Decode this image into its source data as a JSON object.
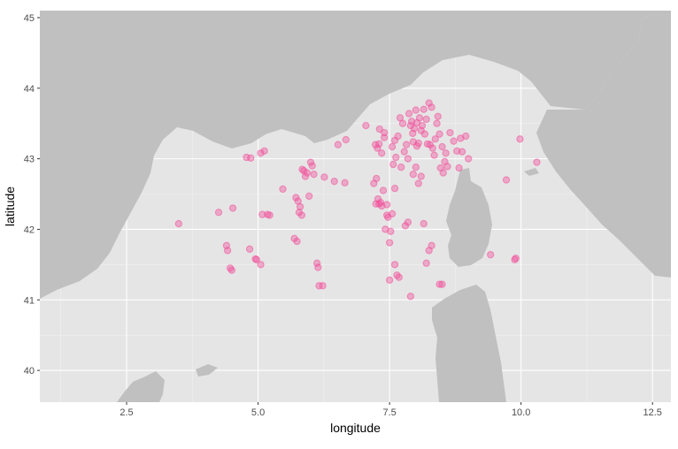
{
  "chart_data": {
    "type": "scatter",
    "title": "",
    "xlabel": "longitude",
    "ylabel": "latitude",
    "xlim": [
      0.85,
      12.85
    ],
    "ylim": [
      39.55,
      45.1
    ],
    "x_ticks": [
      2.5,
      5.0,
      7.5,
      10.0,
      12.5
    ],
    "x_tick_labels": [
      "2.5",
      "5.0",
      "7.5",
      "10.0",
      "12.5"
    ],
    "y_ticks": [
      40,
      41,
      42,
      43,
      44,
      45
    ],
    "y_tick_labels": [
      "40",
      "41",
      "42",
      "43",
      "44",
      "45"
    ],
    "grid": true,
    "legend": "none",
    "colors": {
      "panel": "#e5e5e5",
      "grid_major": "#ffffff",
      "grid_minor": "#f2f2f2",
      "land": "#c0c0c0",
      "point": "#f0509a"
    },
    "basemap": "land masses of the Ligurian Sea region (southern France, north-west Italy, Corsica, Sardinia, Balearic Islands) shown as grey polygons",
    "series": [
      {
        "x": [
          3.49,
          4.25,
          4.4,
          4.42,
          4.47,
          4.5,
          4.52,
          4.78,
          4.84,
          4.86,
          4.95,
          4.97,
          5.05,
          5.05,
          5.08,
          5.12,
          5.18,
          5.22,
          5.47,
          5.69,
          5.72,
          5.74,
          5.76,
          5.78,
          5.8,
          5.83,
          5.84,
          5.87,
          5.9,
          5.93,
          5.97,
          6.0,
          6.03,
          6.06,
          6.12,
          6.14,
          6.16,
          6.23,
          6.26,
          6.45,
          6.52,
          6.65,
          6.67,
          7.05,
          7.2,
          7.23,
          7.24,
          7.25,
          7.27,
          7.28,
          7.3,
          7.31,
          7.33,
          7.35,
          7.38,
          7.4,
          7.42,
          7.45,
          7.47,
          7.5,
          7.52,
          7.55,
          7.57,
          7.6,
          7.62,
          7.64,
          7.66,
          7.68,
          7.72,
          7.75,
          7.8,
          7.82,
          7.85,
          7.87,
          7.9,
          7.92,
          7.94,
          7.97,
          8.0,
          8.02,
          8.05,
          8.07,
          8.1,
          8.12,
          8.15,
          8.17,
          8.2,
          8.22,
          8.25,
          8.27,
          8.3,
          8.32,
          8.35,
          8.37,
          8.4,
          8.42,
          8.45,
          8.47,
          8.5,
          8.52,
          8.55,
          8.57,
          8.6,
          8.65,
          8.72,
          8.78,
          8.82,
          8.85,
          8.88,
          8.95,
          9.0,
          9.72,
          9.9,
          9.98,
          10.3,
          8.2,
          8.25,
          8.3,
          8.45,
          8.5,
          7.7,
          7.9,
          7.5,
          7.3,
          7.35,
          7.45,
          7.55,
          7.6,
          7.85,
          7.95,
          8.0,
          8.05,
          8.1,
          9.42,
          9.88,
          7.78,
          7.95,
          8.02,
          7.4,
          7.6,
          8.15
        ],
        "y": [
          42.08,
          42.24,
          41.77,
          41.7,
          41.45,
          41.42,
          42.3,
          43.02,
          41.72,
          43.01,
          41.58,
          41.57,
          41.5,
          43.08,
          42.21,
          43.11,
          42.21,
          42.2,
          42.57,
          41.87,
          42.45,
          41.83,
          42.4,
          42.24,
          42.32,
          42.2,
          42.85,
          42.83,
          42.75,
          42.8,
          42.47,
          42.95,
          42.9,
          42.78,
          41.52,
          41.46,
          41.2,
          41.2,
          42.74,
          42.68,
          43.2,
          42.66,
          43.27,
          43.47,
          42.65,
          43.2,
          42.36,
          42.72,
          43.15,
          42.43,
          43.21,
          43.42,
          42.38,
          43.08,
          42.55,
          43.3,
          42.0,
          42.2,
          42.17,
          41.81,
          41.97,
          43.17,
          42.92,
          41.5,
          43.02,
          41.35,
          43.32,
          41.32,
          42.88,
          43.5,
          42.05,
          43.2,
          42.1,
          43.64,
          43.47,
          43.53,
          43.36,
          43.43,
          43.69,
          43.51,
          43.22,
          43.58,
          43.4,
          43.47,
          43.7,
          43.35,
          43.56,
          43.21,
          43.79,
          43.2,
          43.73,
          43.15,
          43.05,
          43.28,
          43.5,
          43.6,
          43.35,
          42.87,
          43.17,
          42.8,
          42.96,
          43.08,
          42.89,
          43.37,
          43.25,
          43.11,
          42.87,
          43.29,
          43.1,
          43.32,
          43.0,
          42.7,
          41.59,
          43.28,
          42.95,
          41.52,
          41.7,
          41.77,
          41.22,
          41.22,
          43.58,
          41.05,
          41.28,
          42.36,
          42.33,
          42.35,
          42.22,
          42.58,
          43.0,
          42.78,
          42.88,
          42.65,
          42.75,
          41.64,
          41.57,
          43.1,
          43.24,
          43.18,
          43.37,
          43.26,
          42.08
        ]
      }
    ]
  }
}
